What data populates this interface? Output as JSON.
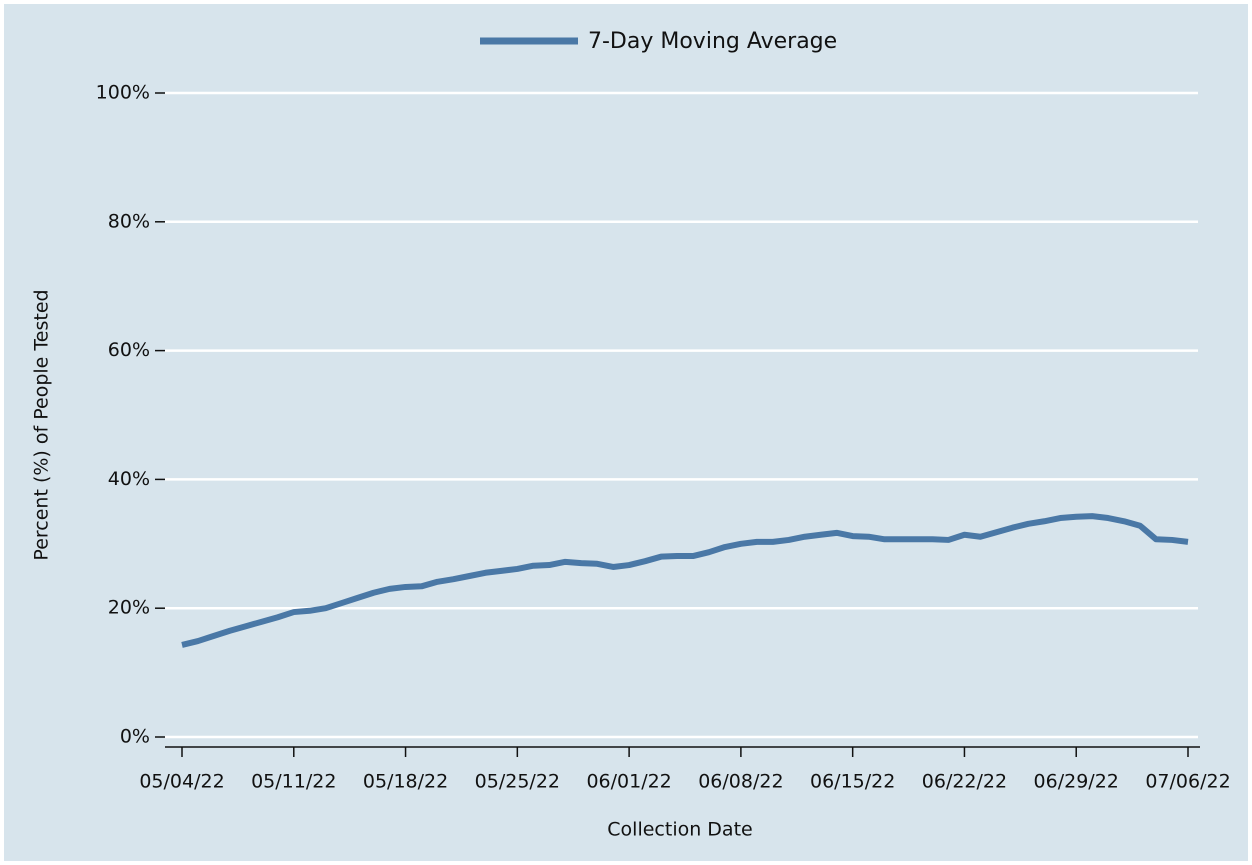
{
  "chart_data": {
    "type": "line",
    "xlabel": "Collection Date",
    "ylabel": "Percent (%) of People Tested",
    "x": [
      "05/04/22",
      "05/05/22",
      "05/06/22",
      "05/07/22",
      "05/08/22",
      "05/09/22",
      "05/10/22",
      "05/11/22",
      "05/12/22",
      "05/13/22",
      "05/14/22",
      "05/15/22",
      "05/16/22",
      "05/17/22",
      "05/18/22",
      "05/19/22",
      "05/20/22",
      "05/21/22",
      "05/22/22",
      "05/23/22",
      "05/24/22",
      "05/25/22",
      "05/26/22",
      "05/27/22",
      "05/28/22",
      "05/29/22",
      "05/30/22",
      "05/31/22",
      "06/01/22",
      "06/02/22",
      "06/03/22",
      "06/04/22",
      "06/05/22",
      "06/06/22",
      "06/07/22",
      "06/08/22",
      "06/09/22",
      "06/10/22",
      "06/11/22",
      "06/12/22",
      "06/13/22",
      "06/14/22",
      "06/15/22",
      "06/16/22",
      "06/17/22",
      "06/18/22",
      "06/19/22",
      "06/20/22",
      "06/21/22",
      "06/22/22",
      "06/23/22",
      "06/24/22",
      "06/25/22",
      "06/26/22",
      "06/27/22",
      "06/28/22",
      "06/29/22",
      "06/30/22",
      "07/01/22",
      "07/02/22",
      "07/03/22",
      "07/04/22",
      "07/05/22",
      "07/06/22"
    ],
    "series": [
      {
        "name": "7-Day Moving Average",
        "color": "#4a78a6",
        "values": [
          14.3,
          14.9,
          15.7,
          16.5,
          17.2,
          17.9,
          18.6,
          19.4,
          19.6,
          20.0,
          20.8,
          21.6,
          22.4,
          23.0,
          23.3,
          23.4,
          24.1,
          24.5,
          25.0,
          25.5,
          25.8,
          26.1,
          26.6,
          26.7,
          27.2,
          27.0,
          26.9,
          26.4,
          26.7,
          27.3,
          28.0,
          28.1,
          28.1,
          28.7,
          29.5,
          30.0,
          30.3,
          30.3,
          30.6,
          31.1,
          31.4,
          31.7,
          31.2,
          31.1,
          30.7,
          30.7,
          30.7,
          30.7,
          30.6,
          31.4,
          31.1,
          31.8,
          32.5,
          33.1,
          33.5,
          34.0,
          34.2,
          34.3,
          34.0,
          33.5,
          32.8,
          30.7,
          30.6,
          30.3
        ]
      }
    ],
    "xticks": [
      "05/04/22",
      "05/11/22",
      "05/18/22",
      "05/25/22",
      "06/01/22",
      "06/08/22",
      "06/15/22",
      "06/22/22",
      "06/29/22",
      "07/06/22"
    ],
    "ylim": [
      0,
      100
    ],
    "yticks": [
      {
        "value": 0,
        "label": "0%"
      },
      {
        "value": 20,
        "label": "20%"
      },
      {
        "value": 40,
        "label": "40%"
      },
      {
        "value": 60,
        "label": "60%"
      },
      {
        "value": 80,
        "label": "80%"
      },
      {
        "value": 100,
        "label": "100%"
      }
    ],
    "grid": true
  }
}
